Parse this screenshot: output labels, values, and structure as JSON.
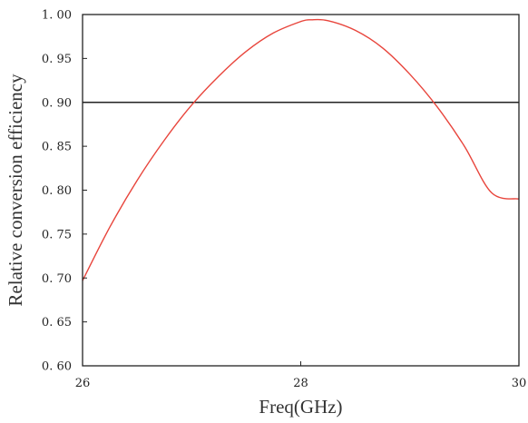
{
  "chart_data": {
    "type": "line",
    "title": "",
    "xlabel": "Freq(GHz)",
    "ylabel": "Relative conversion efficiency",
    "xlim": [
      26,
      30
    ],
    "ylim": [
      0.6,
      1.0
    ],
    "x_ticks": [
      26,
      28,
      30
    ],
    "x_tick_labels": [
      "26",
      "28",
      "30"
    ],
    "y_ticks": [
      0.6,
      0.65,
      0.7,
      0.75,
      0.8,
      0.85,
      0.9,
      0.95,
      1.0
    ],
    "y_tick_labels": [
      "0. 60",
      "0. 65",
      "0. 70",
      "0. 75",
      "0. 80",
      "0. 85",
      "0. 90",
      "0. 95",
      "1. 00"
    ],
    "grid": false,
    "legend": "none",
    "series": [
      {
        "color": "#e8453c",
        "x": [
          26.0,
          26.25,
          26.5,
          26.75,
          27.0,
          27.25,
          27.5,
          27.75,
          28.0,
          28.1,
          28.25,
          28.5,
          28.75,
          29.0,
          29.25,
          29.5,
          29.75,
          30.0
        ],
        "y": [
          0.697,
          0.758,
          0.811,
          0.857,
          0.897,
          0.93,
          0.958,
          0.979,
          0.992,
          0.994,
          0.993,
          0.982,
          0.962,
          0.932,
          0.895,
          0.85,
          0.797,
          0.79
        ]
      }
    ],
    "reference_lines": [
      {
        "orientation": "horizontal",
        "y": 0.9,
        "color": "#222222"
      }
    ]
  }
}
